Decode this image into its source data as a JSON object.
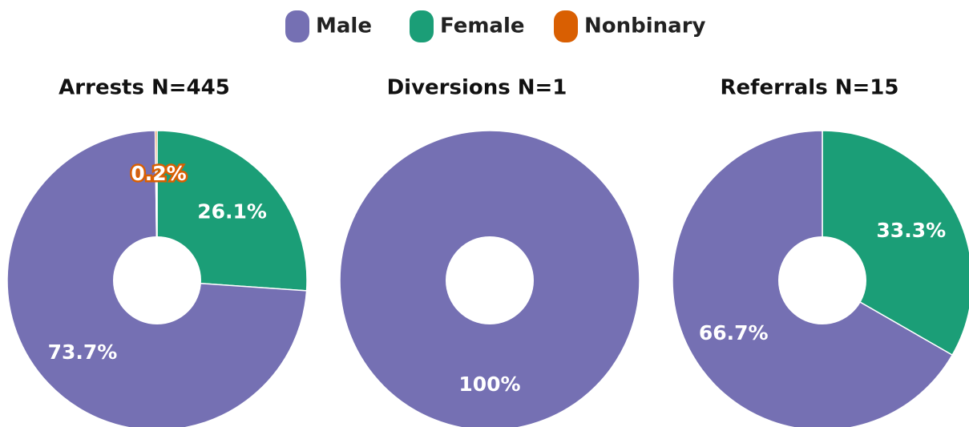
{
  "legend": {
    "items": [
      {
        "name": "Male",
        "color": "#7570b3"
      },
      {
        "name": "Female",
        "color": "#1b9e77"
      },
      {
        "name": "Nonbinary",
        "color": "#d95f02"
      }
    ]
  },
  "chart_data": [
    {
      "type": "pie",
      "title": "Arrests N=445",
      "values": [
        73.7,
        26.1,
        0.2
      ],
      "value_labels": [
        "73.7%",
        "26.1%",
        "0.2%"
      ]
    },
    {
      "type": "pie",
      "title": "Diversions N=1",
      "values": [
        100
      ],
      "value_labels": [
        "100%"
      ]
    },
    {
      "type": "pie",
      "title": "Referrals N=15",
      "values": [
        66.7,
        33.3
      ],
      "value_labels": [
        "66.7%",
        "33.3%"
      ]
    }
  ]
}
